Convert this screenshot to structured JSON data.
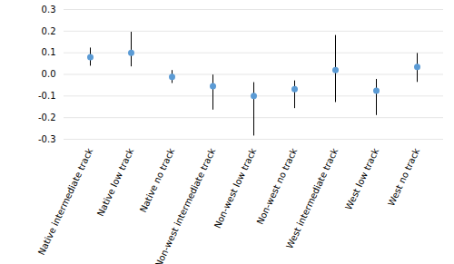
{
  "chart_data": {
    "type": "dot",
    "categories": [
      "Native intermediate track",
      "Native low track",
      "Native no track",
      "Non-west intermediate track",
      "Non-west low track",
      "Non-west no track",
      "West intermediate track",
      "West low track",
      "West no track"
    ],
    "values": [
      0.08,
      0.1,
      -0.012,
      -0.055,
      -0.1,
      -0.068,
      0.02,
      -0.075,
      0.035
    ],
    "yerr_lower": [
      0.042,
      0.065,
      0.03,
      0.11,
      0.185,
      0.09,
      0.15,
      0.115,
      0.072
    ],
    "yerr_upper": [
      0.042,
      0.095,
      0.03,
      0.052,
      0.062,
      0.038,
      0.16,
      0.052,
      0.062
    ],
    "color": "#5B9BD5",
    "ylim": [
      -0.3,
      0.3
    ],
    "yticks": [
      -0.3,
      -0.2,
      -0.1,
      {
        "value": 0.0,
        "label": "0.0"
      },
      0.1,
      0.2,
      0.3
    ],
    "grid": true
  }
}
